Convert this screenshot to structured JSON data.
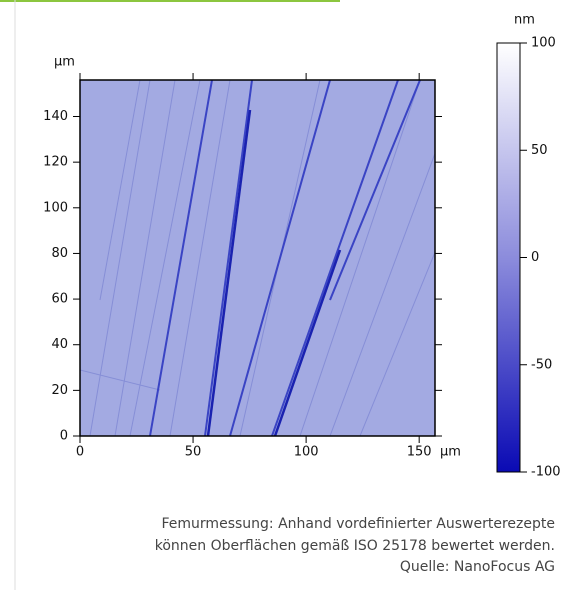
{
  "chart_data": {
    "type": "surface-map",
    "y_label": "µm",
    "x_label": "µm",
    "xlim": [
      0,
      157
    ],
    "xticks": [
      0,
      50,
      100,
      150
    ],
    "ylim": [
      0,
      156
    ],
    "yticks": [
      0,
      20,
      40,
      60,
      80,
      100,
      120,
      140
    ],
    "colorbar": {
      "label": "nm",
      "lim": [
        -100,
        100
      ],
      "ticks": [
        -100,
        -50,
        0,
        50,
        100
      ],
      "colors": [
        "#0a0ab4",
        "#8c8cdc",
        "#ffffff"
      ]
    }
  },
  "caption": {
    "lines": [
      "Femurmessung: Anhand vordefinierter Auswerterezepte",
      "können Oberflächen gemäß ISO 25178 bewertet werden.",
      "Quelle: NanoFocus AG"
    ]
  }
}
